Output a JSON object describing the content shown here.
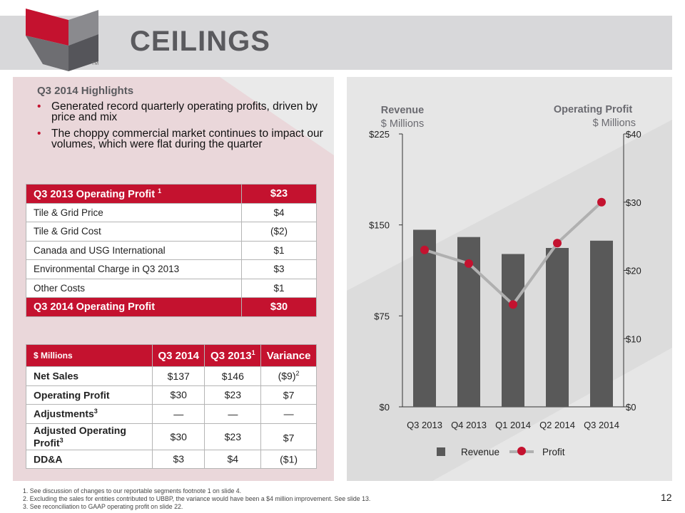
{
  "title": "CEILINGS",
  "logo_mark": "TM",
  "highlights": {
    "title": "Q3 2014 Highlights",
    "bullets": [
      "Generated record quarterly operating profits, driven by price and mix",
      "The choppy commercial market continues to impact our volumes, which were flat during the quarter"
    ]
  },
  "bridge_table": {
    "header": {
      "label": "Q3 2013 Operating Profit",
      "footnote": "1",
      "value": "$23"
    },
    "rows": [
      {
        "label": "Tile & Grid Price",
        "value": "$4"
      },
      {
        "label": "Tile & Grid Cost",
        "value": "($2)"
      },
      {
        "label": "Canada and USG International",
        "value": "$1"
      },
      {
        "label": "Environmental Charge in Q3 2013",
        "value": "$3"
      },
      {
        "label": "Other Costs",
        "value": "$1"
      }
    ],
    "footer": {
      "label": "Q3 2014 Operating Profit",
      "value": "$30"
    }
  },
  "summary_table": {
    "headers": [
      "$ Millions",
      "Q3 2014",
      "Q3 2013",
      "Variance"
    ],
    "header_footnote": "1",
    "rows": [
      {
        "label": "Net Sales",
        "label_sup": "",
        "q3_2014": "$137",
        "q3_2013": "$146",
        "variance": "($9)",
        "variance_sup": "2"
      },
      {
        "label": "Operating Profit",
        "label_sup": "",
        "q3_2014": "$30",
        "q3_2013": "$23",
        "variance": "$7",
        "variance_sup": ""
      },
      {
        "label": "Adjustments",
        "label_sup": "3",
        "q3_2014": "—",
        "q3_2013": "—",
        "variance": "—",
        "variance_sup": ""
      },
      {
        "label": "Adjusted Operating Profit",
        "label_sup": "3",
        "q3_2014": "$30",
        "q3_2013": "$23",
        "variance": "$7",
        "variance_sup": ""
      },
      {
        "label": "DD&A",
        "label_sup": "",
        "q3_2014": "$3",
        "q3_2013": "$4",
        "variance": "($1)",
        "variance_sup": ""
      }
    ]
  },
  "chart_data": {
    "type": "bar",
    "categories": [
      "Q3 2013",
      "Q4 2013",
      "Q1 2014",
      "Q2 2014",
      "Q3 2014"
    ],
    "series": [
      {
        "name": "Revenue",
        "type": "bar",
        "axis": "left",
        "values": [
          146,
          140,
          126,
          131,
          137
        ],
        "color": "#595959"
      },
      {
        "name": "Profit",
        "type": "line",
        "axis": "right",
        "values": [
          23,
          21,
          15,
          24,
          30
        ],
        "color": "#c4122f",
        "line_color": "#b0b0b0"
      }
    ],
    "left_axis": {
      "title": "Revenue",
      "unit": "$ Millions",
      "ylim": [
        0,
        225
      ],
      "ticks": [
        0,
        75,
        150,
        225
      ],
      "tick_labels": [
        "$0",
        "$75",
        "$150",
        "$225"
      ]
    },
    "right_axis": {
      "title": "Operating Profit",
      "unit": "$ Millions",
      "ylim": [
        0,
        40
      ],
      "ticks": [
        0,
        10,
        20,
        30,
        40
      ],
      "tick_labels": [
        "$0",
        "$10",
        "$20",
        "$30",
        "$40"
      ]
    },
    "legend": {
      "position": "bottom",
      "entries": [
        "Revenue",
        "Profit"
      ]
    },
    "grid": false
  },
  "footnotes": [
    "1. See discussion of changes to our reportable segments footnote 1 on slide 4.",
    "2. Excluding the sales for entities contributed to UBBP, the variance would have been a $4 million improvement. See slide 13.",
    "3. See reconciliation to GAAP operating profit on slide 22."
  ],
  "page_number": "12",
  "colors": {
    "accent": "#c4122f",
    "bar": "#595959",
    "title": "#5a5a5e"
  }
}
